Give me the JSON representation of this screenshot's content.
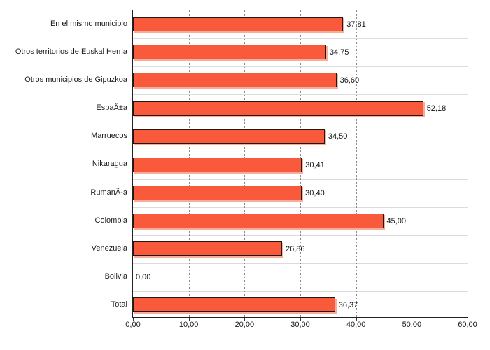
{
  "chart_data": {
    "type": "bar",
    "orientation": "horizontal",
    "categories": [
      "En el mismo municipio",
      "Otros territorios de Euskal Herria",
      "Otros municipios de Gipuzkoa",
      "EspaÃ±a",
      "Marruecos",
      "Nikaragua",
      "RumanÃ-a",
      "Colombia",
      "Venezuela",
      "Bolivia",
      "Total"
    ],
    "values": [
      37.81,
      34.75,
      36.6,
      52.18,
      34.5,
      30.41,
      30.4,
      45.0,
      26.86,
      0.0,
      36.37
    ],
    "value_labels": [
      "37,81",
      "34,75",
      "36,60",
      "52,18",
      "34,50",
      "30,41",
      "30,40",
      "45,00",
      "26,86",
      "0,00",
      "36,37"
    ],
    "x_tick_labels": [
      "0,00",
      "10,00",
      "20,00",
      "30,00",
      "40,00",
      "50,00",
      "60,00"
    ],
    "x_tick_values": [
      0,
      10,
      20,
      30,
      40,
      50,
      60
    ],
    "xlim": [
      0,
      60
    ],
    "grid": "vertical-dotted",
    "legend": "none",
    "title": ""
  },
  "colors": {
    "bar_fill": "#fa5a3c",
    "bar_border": "#231510",
    "bar_shadow": "#f6ae9c",
    "gridline": "#8a8a8a",
    "row_separator": "#dcdcdc",
    "axis_line": "#222222",
    "plot_border": "#555555",
    "text": "#1a1a1a",
    "background": "#ffffff"
  }
}
